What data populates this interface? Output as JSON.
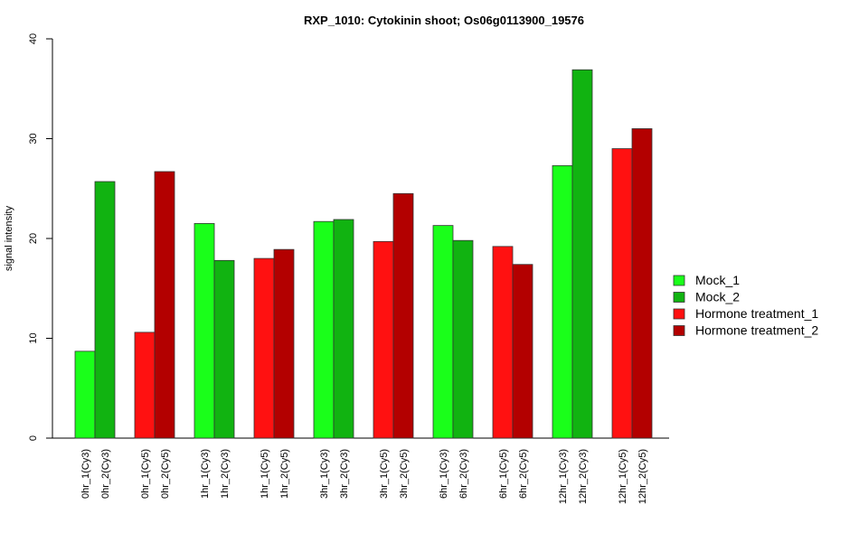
{
  "chart_data": {
    "type": "bar",
    "title": "RXP_1010: Cytokinin shoot; Os06g0113900_19576",
    "xlabel": "",
    "ylabel": "signal intensity",
    "ylim": [
      0,
      40
    ],
    "yticks": [
      0,
      10,
      20,
      30,
      40
    ],
    "grid": false,
    "legend_position": "right",
    "series": [
      {
        "name": "Mock_1",
        "color": "#1aff1a"
      },
      {
        "name": "Mock_2",
        "color": "#11b311"
      },
      {
        "name": "Hormone treatment_1",
        "color": "#ff1111"
      },
      {
        "name": "Hormone treatment_2",
        "color": "#b30000"
      }
    ],
    "bars": [
      {
        "label": "0hr_1(Cy3)",
        "value": 8.7,
        "series": 0
      },
      {
        "label": "0hr_2(Cy3)",
        "value": 25.7,
        "series": 1
      },
      {
        "label": "0hr_1(Cy5)",
        "value": 10.6,
        "series": 2
      },
      {
        "label": "0hr_2(Cy5)",
        "value": 26.7,
        "series": 3
      },
      {
        "label": "1hr_1(Cy3)",
        "value": 21.5,
        "series": 0
      },
      {
        "label": "1hr_2(Cy3)",
        "value": 17.8,
        "series": 1
      },
      {
        "label": "1hr_1(Cy5)",
        "value": 18.0,
        "series": 2
      },
      {
        "label": "1hr_2(Cy5)",
        "value": 18.9,
        "series": 3
      },
      {
        "label": "3hr_1(Cy3)",
        "value": 21.7,
        "series": 0
      },
      {
        "label": "3hr_2(Cy3)",
        "value": 21.9,
        "series": 1
      },
      {
        "label": "3hr_1(Cy5)",
        "value": 19.7,
        "series": 2
      },
      {
        "label": "3hr_2(Cy5)",
        "value": 24.5,
        "series": 3
      },
      {
        "label": "6hr_1(Cy3)",
        "value": 21.3,
        "series": 0
      },
      {
        "label": "6hr_2(Cy3)",
        "value": 19.8,
        "series": 1
      },
      {
        "label": "6hr_1(Cy5)",
        "value": 19.2,
        "series": 2
      },
      {
        "label": "6hr_2(Cy5)",
        "value": 17.4,
        "series": 3
      },
      {
        "label": "12hr_1(Cy3)",
        "value": 27.3,
        "series": 0
      },
      {
        "label": "12hr_2(Cy3)",
        "value": 36.9,
        "series": 1
      },
      {
        "label": "12hr_1(Cy5)",
        "value": 29.0,
        "series": 2
      },
      {
        "label": "12hr_2(Cy5)",
        "value": 31.0,
        "series": 3
      }
    ]
  }
}
